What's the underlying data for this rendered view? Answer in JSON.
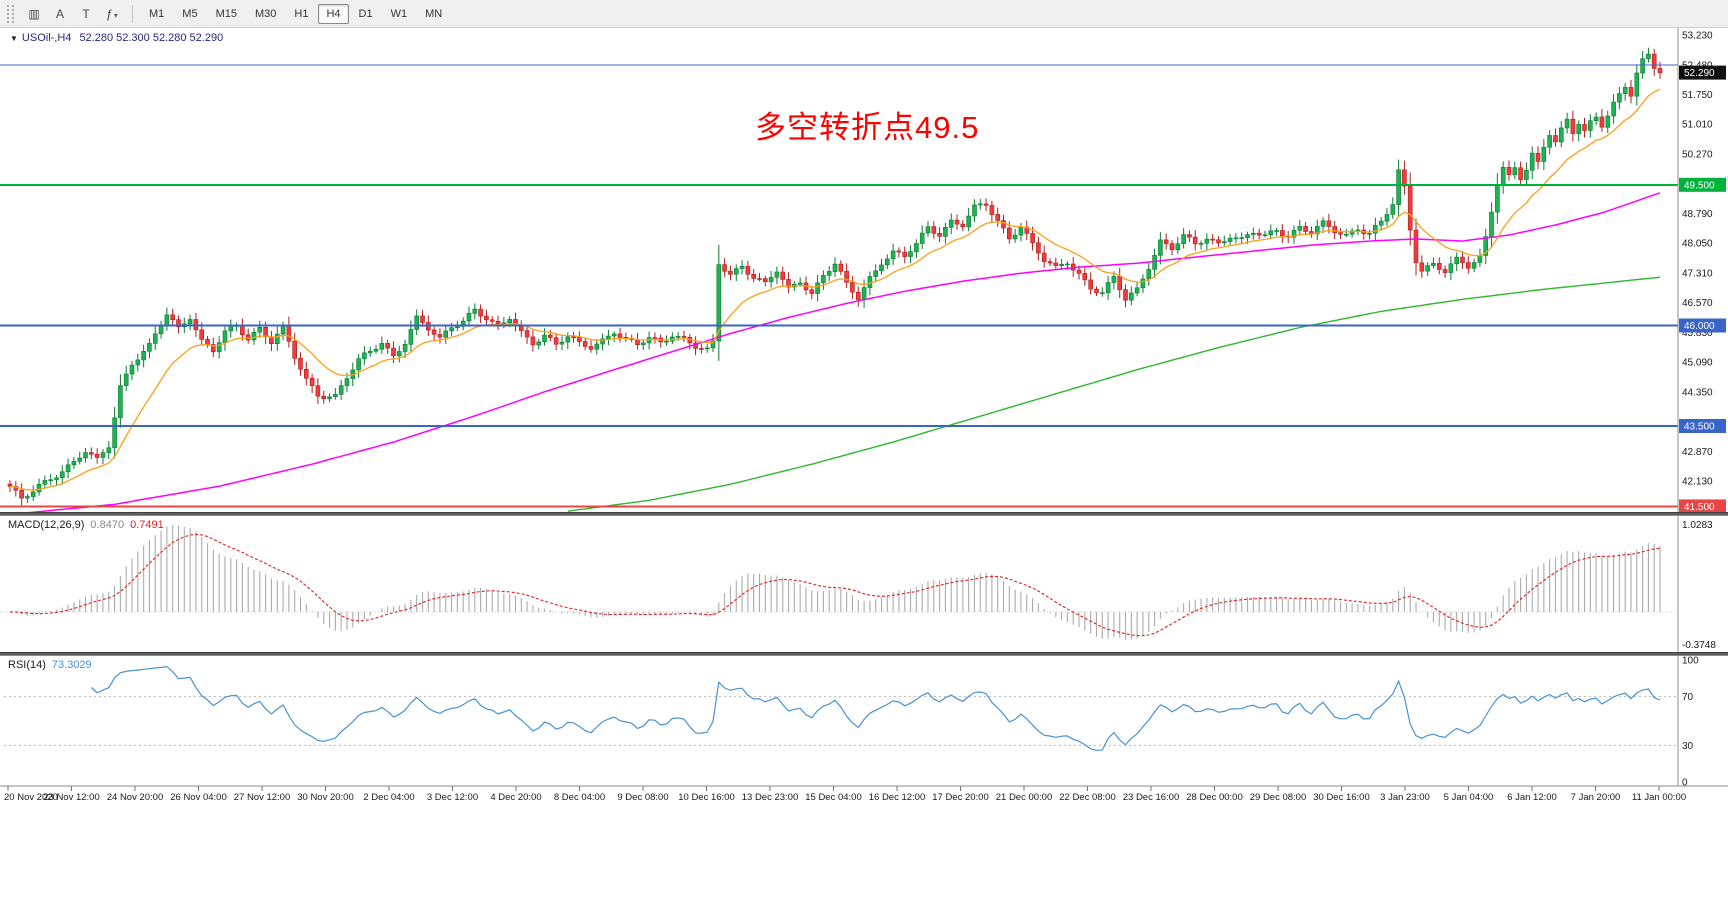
{
  "toolbar": {
    "tools": [
      {
        "id": "chart-type",
        "glyph": "▥"
      },
      {
        "id": "cursor",
        "glyph": "A"
      },
      {
        "id": "text",
        "glyph": "T"
      },
      {
        "id": "indicators",
        "glyph": "ƒ",
        "caret": "▾"
      }
    ],
    "timeframes": [
      "M1",
      "M5",
      "M15",
      "M30",
      "H1",
      "H4",
      "D1",
      "W1",
      "MN"
    ],
    "active_timeframe": "H4"
  },
  "chart": {
    "oneclick_arrow": "▼",
    "symbol_label": "USOil-,H4",
    "ohlc_text": "52.280 52.300 52.280 52.290",
    "annotation": {
      "text": "多空转折点49.5",
      "color": "#ff0000"
    },
    "price_axis_ticks": [
      "53.230",
      "52.480",
      "51.750",
      "51.010",
      "50.270",
      "48.790",
      "48.050",
      "47.310",
      "46.570",
      "45.830",
      "45.090",
      "44.350",
      "42.870",
      "42.130"
    ],
    "price_tags": [
      {
        "text": "52.290",
        "price": 52.29,
        "bg": "#101010",
        "fg": "#ffffff"
      },
      {
        "text": "49.500",
        "price": 49.5,
        "bg": "#00b23c",
        "fg": "#ffffff"
      },
      {
        "text": "46.000",
        "price": 46.0,
        "bg": "#3a64c8",
        "fg": "#ffffff"
      },
      {
        "text": "43.500",
        "price": 43.5,
        "bg": "#3a64c8",
        "fg": "#ffffff"
      },
      {
        "text": "41.500",
        "price": 41.5,
        "bg": "#e84545",
        "fg": "#ffffff"
      }
    ],
    "time_labels": [
      "20 Nov 2020",
      "23 Nov 12:00",
      "24 Nov 20:00",
      "26 Nov 04:00",
      "27 Nov 12:00",
      "30 Nov 20:00",
      "2 Dec 04:00",
      "3 Dec 12:00",
      "4 Dec 20:00",
      "8 Dec 04:00",
      "9 Dec 08:00",
      "10 Dec 16:00",
      "13 Dec 23:00",
      "15 Dec 04:00",
      "16 Dec 12:00",
      "17 Dec 20:00",
      "21 Dec 00:00",
      "22 Dec 08:00",
      "23 Dec 16:00",
      "28 Dec 00:00",
      "29 Dec 08:00",
      "30 Dec 16:00",
      "3 Jan 23:00",
      "5 Jan 04:00",
      "6 Jan 12:00",
      "7 Jan 20:00",
      "11 Jan 00:00"
    ]
  },
  "macd_panel": {
    "name": "MACD(12,26,9)",
    "value1": "0.8470",
    "value2": "0.7491",
    "axis_max": "1.0283",
    "axis_min": "-0.3748"
  },
  "rsi_panel": {
    "name": "RSI(14)",
    "value": "73.3029",
    "axis": [
      "100",
      "70",
      "30",
      "0"
    ],
    "levels": [
      70,
      30
    ]
  },
  "chart_data": {
    "type": "candlestick",
    "symbol": "USOil-",
    "timeframe": "H4",
    "current_ohlc": {
      "open": "52.280",
      "high": "52.300",
      "low": "52.280",
      "close": "52.290"
    },
    "n_candles": 285,
    "price_range": [
      41.36,
      53.35
    ],
    "price_anchors": [
      [
        0,
        41.95
      ],
      [
        2,
        41.65
      ],
      [
        5,
        42.05
      ],
      [
        8,
        42.3
      ],
      [
        11,
        42.55
      ],
      [
        13,
        42.85
      ],
      [
        15,
        42.65
      ],
      [
        17,
        43.05
      ],
      [
        19,
        44.5
      ],
      [
        21,
        45.05
      ],
      [
        24,
        45.45
      ],
      [
        27,
        46.3
      ],
      [
        29,
        45.95
      ],
      [
        31,
        46.25
      ],
      [
        33,
        45.6
      ],
      [
        35,
        45.35
      ],
      [
        37,
        45.8
      ],
      [
        39,
        46.0
      ],
      [
        41,
        45.7
      ],
      [
        43,
        45.95
      ],
      [
        45,
        45.6
      ],
      [
        47,
        45.9
      ],
      [
        49,
        45.2
      ],
      [
        51,
        44.65
      ],
      [
        53,
        44.3
      ],
      [
        56,
        44.25
      ],
      [
        58,
        44.7
      ],
      [
        60,
        45.1
      ],
      [
        62,
        45.35
      ],
      [
        64,
        45.6
      ],
      [
        66,
        45.25
      ],
      [
        68,
        45.6
      ],
      [
        70,
        46.15
      ],
      [
        72,
        45.9
      ],
      [
        74,
        45.65
      ],
      [
        76,
        46.0
      ],
      [
        78,
        46.15
      ],
      [
        80,
        46.4
      ],
      [
        82,
        46.15
      ],
      [
        84,
        45.9
      ],
      [
        86,
        46.2
      ],
      [
        88,
        45.85
      ],
      [
        90,
        45.6
      ],
      [
        92,
        45.75
      ],
      [
        94,
        45.5
      ],
      [
        96,
        45.7
      ],
      [
        98,
        45.55
      ],
      [
        100,
        45.5
      ],
      [
        102,
        45.65
      ],
      [
        104,
        45.85
      ],
      [
        106,
        45.6
      ],
      [
        108,
        45.5
      ],
      [
        110,
        45.7
      ],
      [
        112,
        45.6
      ],
      [
        114,
        45.8
      ],
      [
        116,
        45.65
      ],
      [
        118,
        45.45
      ],
      [
        120,
        45.35
      ],
      [
        121,
        45.55
      ],
      [
        122,
        47.55
      ],
      [
        124,
        47.3
      ],
      [
        126,
        47.5
      ],
      [
        128,
        47.2
      ],
      [
        130,
        47.0
      ],
      [
        132,
        47.35
      ],
      [
        134,
        46.9
      ],
      [
        136,
        47.15
      ],
      [
        138,
        46.8
      ],
      [
        140,
        47.25
      ],
      [
        142,
        47.5
      ],
      [
        144,
        47.0
      ],
      [
        146,
        46.7
      ],
      [
        148,
        47.2
      ],
      [
        150,
        47.6
      ],
      [
        152,
        47.8
      ],
      [
        154,
        47.7
      ],
      [
        156,
        48.0
      ],
      [
        158,
        48.45
      ],
      [
        160,
        48.3
      ],
      [
        162,
        48.6
      ],
      [
        164,
        48.5
      ],
      [
        166,
        48.9
      ],
      [
        168,
        49.0
      ],
      [
        170,
        48.6
      ],
      [
        172,
        48.2
      ],
      [
        174,
        48.5
      ],
      [
        176,
        48.0
      ],
      [
        178,
        47.6
      ],
      [
        180,
        47.4
      ],
      [
        182,
        47.6
      ],
      [
        184,
        47.3
      ],
      [
        186,
        46.95
      ],
      [
        188,
        46.8
      ],
      [
        190,
        47.15
      ],
      [
        192,
        46.65
      ],
      [
        194,
        46.9
      ],
      [
        196,
        47.5
      ],
      [
        198,
        48.1
      ],
      [
        200,
        47.9
      ],
      [
        202,
        48.2
      ],
      [
        204,
        48.0
      ],
      [
        206,
        48.2
      ],
      [
        208,
        48.05
      ],
      [
        210,
        48.25
      ],
      [
        212,
        48.1
      ],
      [
        214,
        48.3
      ],
      [
        216,
        48.2
      ],
      [
        218,
        48.4
      ],
      [
        220,
        48.25
      ],
      [
        222,
        48.45
      ],
      [
        224,
        48.3
      ],
      [
        226,
        48.5
      ],
      [
        228,
        48.35
      ],
      [
        230,
        48.25
      ],
      [
        232,
        48.45
      ],
      [
        234,
        48.3
      ],
      [
        236,
        48.55
      ],
      [
        238,
        49.0
      ],
      [
        239,
        49.8
      ],
      [
        240,
        49.4
      ],
      [
        241,
        48.4
      ],
      [
        242,
        47.65
      ],
      [
        243,
        47.4
      ],
      [
        245,
        47.55
      ],
      [
        247,
        47.35
      ],
      [
        249,
        47.6
      ],
      [
        251,
        47.45
      ],
      [
        253,
        47.7
      ],
      [
        254,
        48.2
      ],
      [
        255,
        48.9
      ],
      [
        256,
        49.6
      ],
      [
        257,
        49.95
      ],
      [
        258,
        49.7
      ],
      [
        259,
        49.9
      ],
      [
        260,
        49.65
      ],
      [
        261,
        49.85
      ],
      [
        262,
        50.2
      ],
      [
        263,
        50.0
      ],
      [
        264,
        50.45
      ],
      [
        265,
        50.8
      ],
      [
        266,
        50.6
      ],
      [
        267,
        50.9
      ],
      [
        268,
        51.15
      ],
      [
        269,
        50.85
      ],
      [
        270,
        51.05
      ],
      [
        271,
        50.8
      ],
      [
        272,
        51.0
      ],
      [
        273,
        51.15
      ],
      [
        274,
        50.95
      ],
      [
        275,
        51.2
      ],
      [
        276,
        51.5
      ],
      [
        277,
        51.75
      ],
      [
        278,
        52.0
      ],
      [
        279,
        51.8
      ],
      [
        280,
        52.3
      ],
      [
        281,
        52.6
      ],
      [
        282,
        52.75
      ],
      [
        283,
        52.4
      ],
      [
        284,
        52.29
      ]
    ],
    "ma_fast": {
      "period": 13,
      "color": "#ff9f1a"
    },
    "ma_mid": {
      "color": "#ff00ff",
      "anchors": [
        [
          0,
          41.3
        ],
        [
          18,
          41.55
        ],
        [
          36,
          42.0
        ],
        [
          52,
          42.55
        ],
        [
          66,
          43.1
        ],
        [
          80,
          43.75
        ],
        [
          92,
          44.35
        ],
        [
          104,
          44.9
        ],
        [
          114,
          45.35
        ],
        [
          124,
          45.8
        ],
        [
          134,
          46.2
        ],
        [
          144,
          46.55
        ],
        [
          154,
          46.85
        ],
        [
          164,
          47.1
        ],
        [
          174,
          47.3
        ],
        [
          184,
          47.45
        ],
        [
          194,
          47.55
        ],
        [
          204,
          47.7
        ],
        [
          214,
          47.85
        ],
        [
          224,
          48.0
        ],
        [
          234,
          48.1
        ],
        [
          242,
          48.15
        ],
        [
          250,
          48.1
        ],
        [
          258,
          48.25
        ],
        [
          266,
          48.5
        ],
        [
          274,
          48.8
        ],
        [
          284,
          49.3
        ]
      ]
    },
    "ma_slow": {
      "color": "#2eb82e",
      "anchors": [
        [
          96,
          41.38
        ],
        [
          110,
          41.65
        ],
        [
          124,
          42.05
        ],
        [
          138,
          42.55
        ],
        [
          152,
          43.1
        ],
        [
          166,
          43.7
        ],
        [
          180,
          44.3
        ],
        [
          194,
          44.9
        ],
        [
          208,
          45.45
        ],
        [
          222,
          45.95
        ],
        [
          236,
          46.35
        ],
        [
          250,
          46.65
        ],
        [
          264,
          46.9
        ],
        [
          274,
          47.05
        ],
        [
          284,
          47.2
        ]
      ]
    },
    "up_color": "#1cb351",
    "up_border": "#0b7a34",
    "down_color": "#f23b3b",
    "down_border": "#b01d1d",
    "macd": {
      "fast": 12,
      "slow": 26,
      "signal": 9,
      "hist_color": "#ababab",
      "signal_color": "#e02020",
      "axis_max": 1.0283,
      "axis_min": -0.3748
    },
    "rsi": {
      "period": 14,
      "color": "#4792d2",
      "levels": [
        70,
        30
      ],
      "range": [
        0,
        100
      ]
    }
  }
}
